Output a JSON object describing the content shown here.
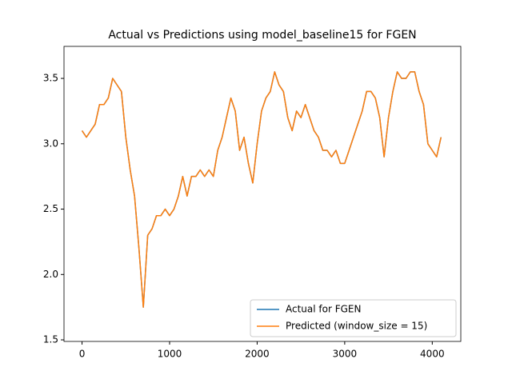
{
  "chart_data": {
    "type": "line",
    "title": "Actual vs Predictions using model_baseline15 for FGEN",
    "x": [
      0,
      50,
      100,
      150,
      200,
      250,
      300,
      350,
      400,
      450,
      500,
      550,
      600,
      650,
      700,
      750,
      800,
      850,
      900,
      950,
      1000,
      1050,
      1100,
      1150,
      1200,
      1250,
      1300,
      1350,
      1400,
      1450,
      1500,
      1550,
      1600,
      1650,
      1700,
      1750,
      1800,
      1850,
      1900,
      1950,
      2000,
      2050,
      2100,
      2150,
      2200,
      2250,
      2300,
      2350,
      2400,
      2450,
      2500,
      2550,
      2600,
      2650,
      2700,
      2750,
      2800,
      2850,
      2900,
      2950,
      3000,
      3050,
      3100,
      3150,
      3200,
      3250,
      3300,
      3350,
      3400,
      3450,
      3500,
      3550,
      3600,
      3650,
      3700,
      3750,
      3800,
      3850,
      3900,
      3950,
      4000,
      4050,
      4100
    ],
    "series": [
      {
        "name": "Actual for FGEN",
        "color": "#1f77b4",
        "values": [
          3.1,
          3.05,
          3.1,
          3.15,
          3.3,
          3.3,
          3.35,
          3.5,
          3.45,
          3.4,
          3.05,
          2.8,
          2.6,
          2.2,
          1.75,
          2.3,
          2.35,
          2.45,
          2.45,
          2.5,
          2.45,
          2.5,
          2.6,
          2.75,
          2.6,
          2.75,
          2.75,
          2.8,
          2.75,
          2.8,
          2.75,
          2.95,
          3.05,
          3.2,
          3.35,
          3.25,
          2.95,
          3.05,
          2.85,
          2.7,
          3.0,
          3.25,
          3.35,
          3.4,
          3.55,
          3.45,
          3.4,
          3.2,
          3.1,
          3.25,
          3.2,
          3.3,
          3.2,
          3.1,
          3.05,
          2.95,
          2.95,
          2.9,
          2.95,
          2.85,
          2.85,
          2.95,
          3.05,
          3.15,
          3.25,
          3.4,
          3.4,
          3.35,
          3.2,
          2.9,
          3.2,
          3.4,
          3.55,
          3.5,
          3.5,
          3.55,
          3.55,
          3.4,
          3.3,
          3.0,
          2.95,
          2.9,
          3.05
        ]
      },
      {
        "name": "Predicted (window_size = 15)",
        "color": "#ff7f0e",
        "values": [
          3.1,
          3.05,
          3.1,
          3.15,
          3.3,
          3.3,
          3.35,
          3.5,
          3.45,
          3.4,
          3.05,
          2.8,
          2.6,
          2.2,
          1.75,
          2.3,
          2.35,
          2.45,
          2.45,
          2.5,
          2.45,
          2.5,
          2.6,
          2.75,
          2.6,
          2.75,
          2.75,
          2.8,
          2.75,
          2.8,
          2.75,
          2.95,
          3.05,
          3.2,
          3.35,
          3.25,
          2.95,
          3.05,
          2.85,
          2.7,
          3.0,
          3.25,
          3.35,
          3.4,
          3.55,
          3.45,
          3.4,
          3.2,
          3.1,
          3.25,
          3.2,
          3.3,
          3.2,
          3.1,
          3.05,
          2.95,
          2.95,
          2.9,
          2.95,
          2.85,
          2.85,
          2.95,
          3.05,
          3.15,
          3.25,
          3.4,
          3.4,
          3.35,
          3.2,
          2.9,
          3.2,
          3.4,
          3.55,
          3.5,
          3.5,
          3.55,
          3.55,
          3.4,
          3.3,
          3.0,
          2.95,
          2.9,
          3.05
        ]
      }
    ],
    "xlim": [
      -206,
      4326
    ],
    "ylim": [
      1.488,
      3.745
    ],
    "xticks": [
      0,
      1000,
      2000,
      3000,
      4000
    ],
    "yticks": [
      1.5,
      {
        "value": 2,
        "label": "2.0"
      },
      2.5,
      {
        "value": 3,
        "label": "3.0"
      },
      3.5
    ],
    "legend": "lower right"
  }
}
